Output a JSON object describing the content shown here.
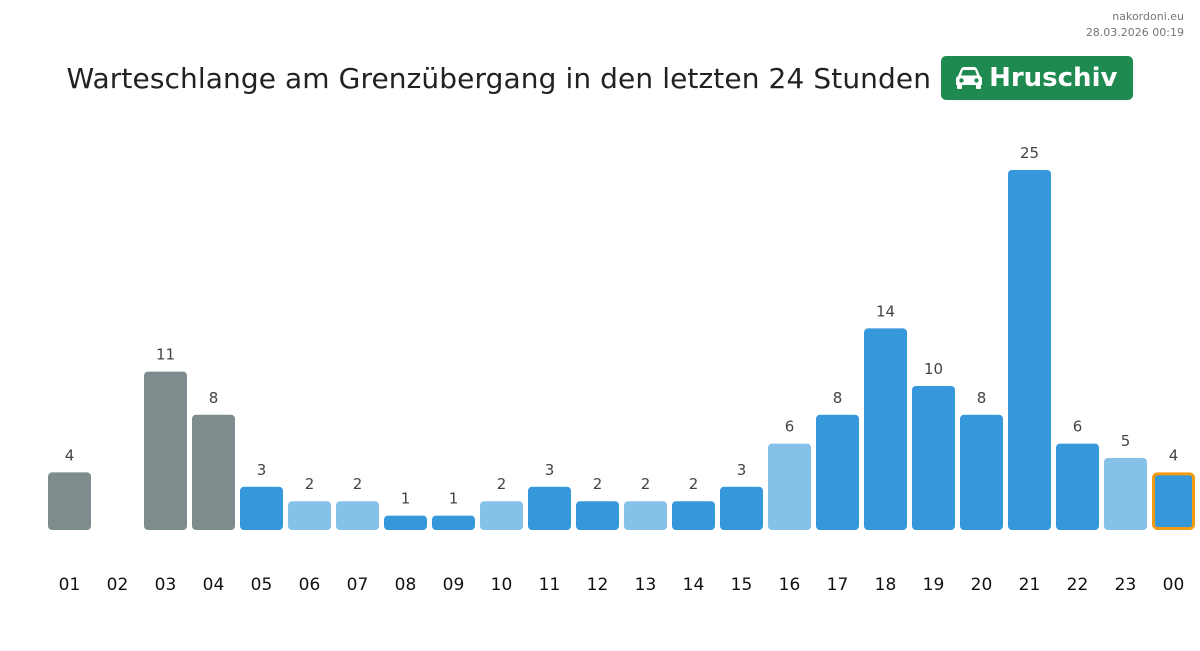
{
  "credit": {
    "site": "nakordoni.eu",
    "timestamp": "28.03.2026 00:19"
  },
  "header": {
    "title": "Warteschlange am Grenzübergang in den letzten 24 Stunden",
    "badge_icon": "car-icon",
    "badge_label": "Hruschiv"
  },
  "colors": {
    "past": "#7f8c8d",
    "normal": "#3498db",
    "light": "#85c1e9",
    "current_outline": "#f39c12",
    "value_text": "#444444",
    "tick_text": "#111111"
  },
  "chart_data": {
    "type": "bar",
    "title": "Warteschlange am Grenzübergang in den letzten 24 Stunden",
    "xlabel": "",
    "ylabel": "",
    "ylim": [
      0,
      25
    ],
    "categories": [
      "01",
      "02",
      "03",
      "04",
      "05",
      "06",
      "07",
      "08",
      "09",
      "10",
      "11",
      "12",
      "13",
      "14",
      "15",
      "16",
      "17",
      "18",
      "19",
      "20",
      "21",
      "22",
      "23",
      "00"
    ],
    "values": [
      4,
      0,
      11,
      8,
      3,
      2,
      2,
      1,
      1,
      2,
      3,
      2,
      2,
      2,
      3,
      6,
      8,
      14,
      10,
      8,
      25,
      6,
      5,
      4
    ],
    "styles": [
      "past",
      "past",
      "past",
      "past",
      "normal",
      "light",
      "light",
      "normal",
      "normal",
      "light",
      "normal",
      "normal",
      "light",
      "normal",
      "normal",
      "light",
      "normal",
      "normal",
      "normal",
      "normal",
      "normal",
      "normal",
      "light",
      "current"
    ],
    "value_labels_shown": [
      true,
      false,
      true,
      true,
      true,
      true,
      true,
      true,
      true,
      true,
      true,
      true,
      true,
      true,
      true,
      true,
      true,
      true,
      true,
      true,
      true,
      true,
      true,
      true
    ]
  }
}
